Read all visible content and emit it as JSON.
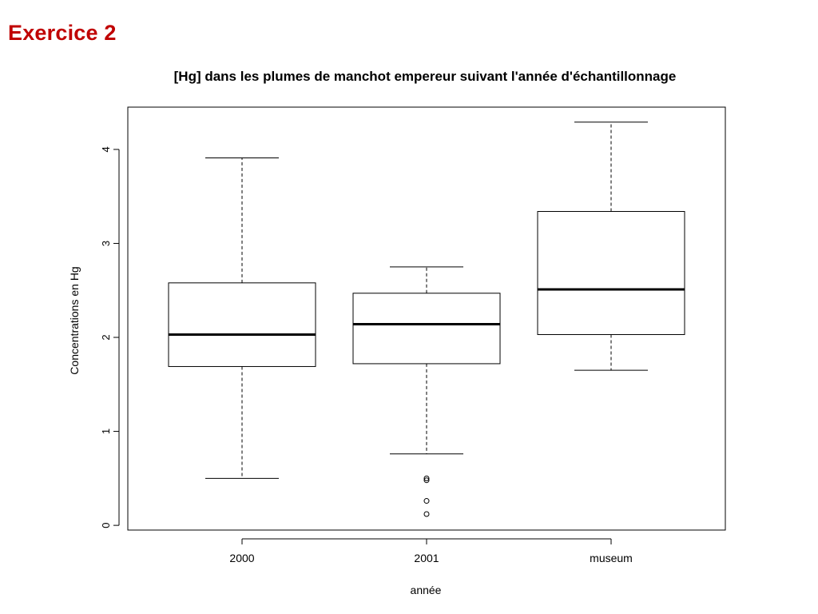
{
  "heading": "Exercice 2",
  "heading_color": "#c00000",
  "chart_data": {
    "type": "boxplot",
    "title": "[Hg] dans les plumes de manchot empereur suivant l'année d'échantillonnage",
    "xlabel": "année",
    "ylabel": "Concentrations en Hg",
    "categories": [
      "2000",
      "2001",
      "museum"
    ],
    "boxes": [
      {
        "category": "2000",
        "whisker_low": 0.5,
        "q1": 1.69,
        "median": 2.03,
        "q3": 2.58,
        "whisker_high": 3.91,
        "outliers": []
      },
      {
        "category": "2001",
        "whisker_low": 0.76,
        "q1": 1.72,
        "median": 2.14,
        "q3": 2.47,
        "whisker_high": 2.75,
        "outliers": [
          0.5,
          0.48,
          0.26,
          0.12
        ]
      },
      {
        "category": "museum",
        "whisker_low": 1.65,
        "q1": 2.03,
        "median": 2.51,
        "q3": 3.34,
        "whisker_high": 4.29,
        "outliers": []
      }
    ],
    "ylim": [
      -0.05,
      4.45
    ],
    "yticks": [
      0,
      1,
      2,
      3,
      4
    ],
    "grid": false,
    "legend": "none"
  }
}
